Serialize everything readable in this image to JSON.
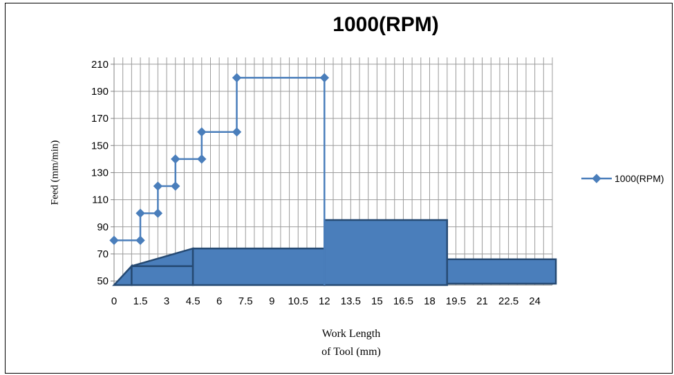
{
  "chart_data": {
    "type": "line",
    "title": "1000(RPM)",
    "xlabel": "Work Length\nof Tool (mm)",
    "ylabel": "Feed (mm/min)",
    "x_ticks": [
      "0",
      "1.5",
      "3",
      "4.5",
      "6",
      "7.5",
      "9",
      "10.5",
      "12",
      "13.5",
      "15",
      "16.5",
      "18",
      "19.5",
      "21",
      "22.5",
      "24"
    ],
    "y_ticks": [
      "50",
      "70",
      "90",
      "110",
      "130",
      "150",
      "170",
      "190",
      "210"
    ],
    "xlim": [
      0,
      25
    ],
    "ylim": [
      47,
      215
    ],
    "grid": true,
    "legend_position": "right",
    "series": [
      {
        "name": "1000(RPM)",
        "color": "#4a7ebb",
        "marker": "diamond",
        "x": [
          0,
          1.5,
          1.5,
          2.5,
          2.5,
          3.5,
          3.5,
          5,
          5,
          7,
          7,
          12
        ],
        "y": [
          80,
          80,
          100,
          100,
          120,
          120,
          140,
          140,
          160,
          160,
          200,
          200
        ]
      }
    ],
    "series_step_drop": {
      "x": 12,
      "y": 47
    },
    "tool_profile": {
      "color": "#4a7ebb",
      "edge_color": "#264a73",
      "polygons": [
        [
          [
            0,
            47
          ],
          [
            1,
            61
          ],
          [
            1,
            47
          ]
        ],
        [
          [
            1,
            47
          ],
          [
            1,
            61
          ],
          [
            4.5,
            61
          ],
          [
            4.5,
            47
          ]
        ],
        [
          [
            1,
            61
          ],
          [
            4.5,
            74
          ],
          [
            4.5,
            61
          ]
        ],
        [
          [
            4.5,
            47
          ],
          [
            4.5,
            74
          ],
          [
            12,
            74
          ],
          [
            12,
            47
          ]
        ],
        [
          [
            12,
            47
          ],
          [
            12,
            95
          ],
          [
            19,
            95
          ],
          [
            19,
            47
          ]
        ],
        [
          [
            19,
            48
          ],
          [
            19,
            66
          ],
          [
            25.2,
            66
          ],
          [
            25.2,
            48
          ]
        ]
      ]
    }
  }
}
